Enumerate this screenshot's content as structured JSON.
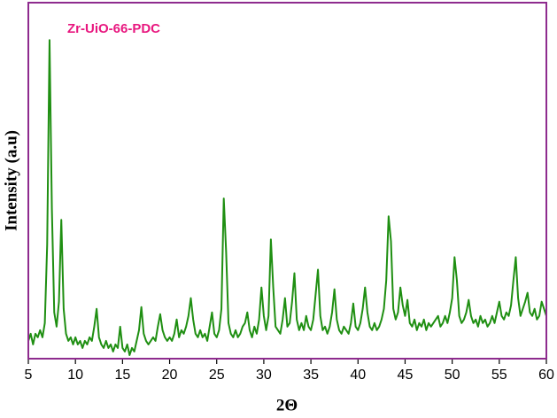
{
  "chart_data": {
    "type": "line",
    "annotation": "Zr-UiO-66-PDC",
    "annotation_color": "#e8177f",
    "xlabel": "2Θ",
    "ylabel": "Intensity (a.u)",
    "xlim": [
      5,
      60
    ],
    "ylim": [
      0,
      100
    ],
    "xticks": [
      5,
      10,
      15,
      20,
      25,
      30,
      35,
      40,
      45,
      50,
      55,
      60
    ],
    "frame_color": "#8e2b8e",
    "series": [
      {
        "name": "Zr-UiO-66-PDC",
        "color": "#1f8f12",
        "x": [
          5,
          5.25,
          5.5,
          5.75,
          6,
          6.25,
          6.5,
          6.75,
          7,
          7.25,
          7.5,
          7.75,
          8,
          8.25,
          8.5,
          8.75,
          9,
          9.25,
          9.5,
          9.75,
          10,
          10.25,
          10.5,
          10.75,
          11,
          11.25,
          11.5,
          11.75,
          12,
          12.25,
          12.5,
          12.75,
          13,
          13.25,
          13.5,
          13.75,
          14,
          14.25,
          14.5,
          14.75,
          15,
          15.25,
          15.5,
          15.75,
          16,
          16.25,
          16.5,
          16.75,
          17,
          17.25,
          17.5,
          17.75,
          18,
          18.25,
          18.5,
          18.75,
          19,
          19.25,
          19.5,
          19.75,
          20,
          20.25,
          20.5,
          20.75,
          21,
          21.25,
          21.5,
          21.75,
          22,
          22.25,
          22.5,
          22.75,
          23,
          23.25,
          23.5,
          23.75,
          24,
          24.25,
          24.5,
          24.75,
          25,
          25.25,
          25.5,
          25.75,
          26,
          26.25,
          26.5,
          26.75,
          27,
          27.25,
          27.5,
          27.75,
          28,
          28.25,
          28.5,
          28.75,
          29,
          29.25,
          29.5,
          29.75,
          30,
          30.25,
          30.5,
          30.75,
          31,
          31.25,
          31.5,
          31.75,
          32,
          32.25,
          32.5,
          32.75,
          33,
          33.25,
          33.5,
          33.75,
          34,
          34.25,
          34.5,
          34.75,
          35,
          35.25,
          35.5,
          35.75,
          36,
          36.25,
          36.5,
          36.75,
          37,
          37.25,
          37.5,
          37.75,
          38,
          38.25,
          38.5,
          38.75,
          39,
          39.25,
          39.5,
          39.75,
          40,
          40.25,
          40.5,
          40.75,
          41,
          41.25,
          41.5,
          41.75,
          42,
          42.25,
          42.5,
          42.75,
          43,
          43.25,
          43.5,
          43.75,
          44,
          44.25,
          44.5,
          44.75,
          45,
          45.25,
          45.5,
          45.75,
          46,
          46.25,
          46.5,
          46.75,
          47,
          47.25,
          47.5,
          47.75,
          48,
          48.25,
          48.5,
          48.75,
          49,
          49.25,
          49.5,
          49.75,
          50,
          50.25,
          50.5,
          50.75,
          51,
          51.25,
          51.5,
          51.75,
          52,
          52.25,
          52.5,
          52.75,
          53,
          53.25,
          53.5,
          53.75,
          54,
          54.25,
          54.5,
          54.75,
          55,
          55.25,
          55.5,
          55.75,
          56,
          56.25,
          56.5,
          56.75,
          57,
          57.25,
          57.5,
          57.75,
          58,
          58.25,
          58.5,
          58.75,
          59,
          59.25,
          59.5,
          59.75,
          60
        ],
        "values": [
          5,
          7,
          4,
          7,
          6,
          8,
          6,
          10,
          32,
          89.5,
          42,
          13,
          9,
          16,
          39,
          14,
          7,
          5,
          6,
          4,
          6,
          4,
          5,
          3,
          5,
          4,
          6,
          5,
          9,
          14,
          6,
          4,
          3,
          5,
          3,
          4,
          2,
          4,
          3,
          9,
          3,
          2,
          4,
          1,
          3,
          2,
          5,
          8,
          14.5,
          7,
          5,
          4,
          5,
          6,
          5,
          9,
          12.5,
          8,
          6,
          5,
          6,
          5,
          7,
          11,
          6,
          8,
          7,
          9,
          12,
          17,
          11,
          7,
          6,
          8,
          6,
          7,
          5,
          9,
          13,
          7,
          6,
          8,
          14,
          45,
          30,
          10,
          7,
          6,
          8,
          6,
          7,
          9,
          10,
          13,
          8,
          6,
          9,
          7,
          11,
          20,
          12,
          8,
          12,
          33.5,
          20,
          9,
          8,
          7,
          11,
          17,
          9,
          10,
          16,
          24,
          11,
          8,
          10,
          8,
          12,
          9,
          8,
          11,
          18,
          25,
          12,
          8,
          9,
          7,
          9,
          13,
          19.5,
          11,
          8,
          7,
          9,
          8,
          7,
          10,
          15.5,
          9,
          8,
          10,
          14,
          20,
          13,
          9,
          8,
          10,
          8,
          9,
          11,
          14,
          22,
          40,
          33,
          14,
          11,
          13,
          20,
          15,
          12,
          16.5,
          10,
          9,
          11,
          8,
          10,
          9,
          11,
          8,
          10,
          9,
          10,
          11,
          12,
          9,
          10,
          12,
          10,
          13,
          17,
          28.5,
          22,
          12,
          10,
          11,
          13,
          16.5,
          12,
          10,
          11,
          9,
          12,
          10,
          11,
          9,
          10,
          12,
          10,
          13,
          16,
          12,
          11,
          13,
          12,
          15,
          22,
          28.5,
          17,
          12,
          14,
          16,
          18.5,
          13,
          12,
          14,
          11,
          12,
          16,
          14,
          12
        ]
      }
    ]
  }
}
